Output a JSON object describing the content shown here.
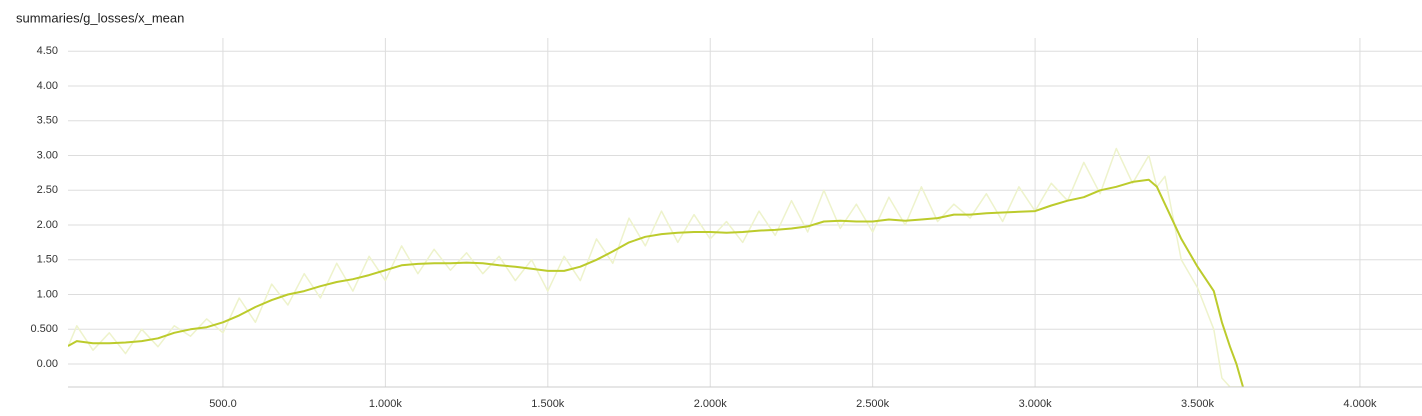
{
  "chart_data": {
    "type": "line",
    "title": "summaries/g_losses/x_mean",
    "x": [
      23,
      50,
      100,
      150,
      200,
      250,
      300,
      350,
      400,
      450,
      500,
      550,
      600,
      650,
      700,
      750,
      800,
      850,
      900,
      950,
      1000,
      1050,
      1100,
      1150,
      1200,
      1250,
      1300,
      1350,
      1400,
      1450,
      1500,
      1550,
      1600,
      1650,
      1700,
      1750,
      1800,
      1850,
      1900,
      1950,
      2000,
      2050,
      2100,
      2150,
      2200,
      2250,
      2300,
      2350,
      2400,
      2450,
      2500,
      2550,
      2600,
      2650,
      2700,
      2750,
      2800,
      2850,
      2900,
      2950,
      3000,
      3050,
      3100,
      3150,
      3200,
      3250,
      3300,
      3350,
      3375,
      3400,
      3450,
      3500,
      3550,
      3575,
      3600,
      3620,
      3640
    ],
    "series": [
      {
        "color": "#eef3cc",
        "values": [
          0.25,
          0.55,
          0.2,
          0.45,
          0.15,
          0.5,
          0.25,
          0.55,
          0.4,
          0.65,
          0.45,
          0.95,
          0.6,
          1.15,
          0.85,
          1.3,
          0.95,
          1.45,
          1.05,
          1.55,
          1.2,
          1.7,
          1.3,
          1.65,
          1.35,
          1.6,
          1.3,
          1.55,
          1.2,
          1.5,
          1.05,
          1.55,
          1.2,
          1.8,
          1.45,
          2.1,
          1.7,
          2.2,
          1.75,
          2.15,
          1.8,
          2.05,
          1.75,
          2.2,
          1.85,
          2.35,
          1.9,
          2.5,
          1.95,
          2.3,
          1.9,
          2.4,
          2.0,
          2.55,
          2.05,
          2.3,
          2.1,
          2.45,
          2.05,
          2.55,
          2.2,
          2.6,
          2.35,
          2.9,
          2.45,
          3.1,
          2.6,
          3.0,
          2.55,
          2.7,
          1.5,
          1.1,
          0.5,
          -0.2,
          -0.33,
          -0.33,
          -0.33
        ]
      },
      {
        "color": "#bccb2c",
        "values": [
          0.26,
          0.33,
          0.3,
          0.3,
          0.31,
          0.33,
          0.37,
          0.45,
          0.5,
          0.53,
          0.6,
          0.7,
          0.82,
          0.92,
          1.0,
          1.05,
          1.12,
          1.18,
          1.22,
          1.28,
          1.35,
          1.42,
          1.44,
          1.45,
          1.45,
          1.46,
          1.45,
          1.42,
          1.4,
          1.37,
          1.34,
          1.34,
          1.4,
          1.5,
          1.62,
          1.75,
          1.83,
          1.87,
          1.89,
          1.9,
          1.9,
          1.89,
          1.9,
          1.92,
          1.93,
          1.95,
          1.98,
          2.05,
          2.06,
          2.05,
          2.05,
          2.08,
          2.06,
          2.08,
          2.1,
          2.15,
          2.15,
          2.17,
          2.18,
          2.19,
          2.2,
          2.28,
          2.35,
          2.4,
          2.5,
          2.55,
          2.62,
          2.65,
          2.55,
          2.3,
          1.8,
          1.4,
          1.05,
          0.6,
          0.25,
          0.0,
          -0.33
        ]
      }
    ],
    "xlim": [
      23,
      4191
    ],
    "ylim": [
      -0.33,
      4.69
    ],
    "xticks": [
      {
        "value": 500,
        "label": "500.0"
      },
      {
        "value": 1000,
        "label": "1.000k"
      },
      {
        "value": 1500,
        "label": "1.500k"
      },
      {
        "value": 2000,
        "label": "2.000k"
      },
      {
        "value": 2500,
        "label": "2.500k"
      },
      {
        "value": 3000,
        "label": "3.000k"
      },
      {
        "value": 3500,
        "label": "3.500k"
      },
      {
        "value": 4000,
        "label": "4.000k"
      }
    ],
    "yticks": [
      {
        "value": 0,
        "label": "0.00"
      },
      {
        "value": 0.5,
        "label": "0.500"
      },
      {
        "value": 1,
        "label": "1.00"
      },
      {
        "value": 1.5,
        "label": "1.50"
      },
      {
        "value": 2,
        "label": "2.00"
      },
      {
        "value": 2.5,
        "label": "2.50"
      },
      {
        "value": 3,
        "label": "3.00"
      },
      {
        "value": 3.5,
        "label": "3.50"
      },
      {
        "value": 4,
        "label": "4.00"
      },
      {
        "value": 4.5,
        "label": "4.50"
      }
    ],
    "grid": true
  }
}
